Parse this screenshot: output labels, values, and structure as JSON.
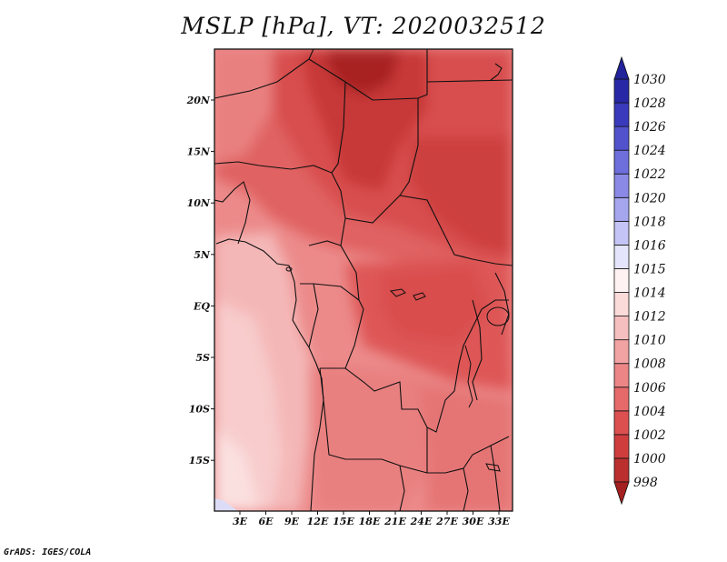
{
  "title": "MSLP [hPa], VT: 2020032512",
  "credit": "GrADS: IGES/COLA",
  "map": {
    "lon_labels": [
      "3E",
      "6E",
      "9E",
      "12E",
      "15E",
      "18E",
      "21E",
      "24E",
      "27E",
      "30E",
      "33E"
    ],
    "lat_labels": [
      "20N",
      "15N",
      "10N",
      "5N",
      "EQ",
      "5S",
      "10S",
      "15S"
    ]
  },
  "colorbar": {
    "levels": [
      "998",
      "1000",
      "1002",
      "1004",
      "1006",
      "1008",
      "1010",
      "1012",
      "1014",
      "1015",
      "1016",
      "1018",
      "1020",
      "1022",
      "1024",
      "1026",
      "1028",
      "1030"
    ],
    "colors": [
      "#a41f1f",
      "#bb2f2f",
      "#cf3d3d",
      "#dd5050",
      "#e66a6a",
      "#ec8686",
      "#f1a2a2",
      "#f6bfbf",
      "#fbdada",
      "#fff2f2",
      "#e4e4fc",
      "#c4c4f6",
      "#a6a6ee",
      "#8a8ae6",
      "#6e6edc",
      "#5252cc",
      "#3a3abc",
      "#2828a6"
    ],
    "bottom_arrow_color": "#a41f1f",
    "top_arrow_color": "#22229a"
  }
}
